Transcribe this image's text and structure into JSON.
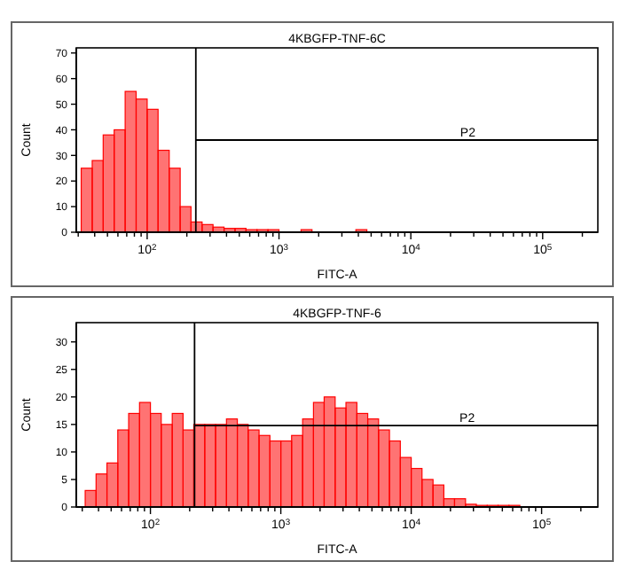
{
  "chart_data": [
    {
      "type": "histogram",
      "title": "4KBGFP-TNF-6C",
      "xlabel": "FITC-A",
      "ylabel": "Count",
      "log": "x",
      "color": "#ff0000",
      "bins": [
        31.6,
        38.3,
        46.4,
        56.2,
        68.1,
        82.5,
        100,
        121,
        147,
        178,
        215,
        261,
        316,
        383,
        464,
        562,
        681,
        825,
        1000,
        1210,
        1470,
        1780,
        2150,
        2610,
        3160,
        3830,
        4640,
        5620,
        6810,
        8250,
        10000,
        12100,
        14700,
        17800,
        21500,
        26100,
        31600,
        38300,
        46400,
        56200,
        68100,
        82500,
        100000,
        121000,
        147000,
        178000,
        215000,
        261000
      ],
      "values": [
        25,
        28,
        38,
        40,
        55,
        52,
        48,
        32,
        25,
        10,
        4,
        3,
        2,
        1.5,
        1.5,
        1,
        1,
        1,
        0,
        0,
        1,
        0,
        0,
        0,
        0,
        1,
        0,
        0,
        0,
        0,
        0,
        0,
        0,
        0,
        0,
        0,
        0,
        0,
        0,
        0,
        0,
        0,
        0,
        0,
        0,
        0,
        0
      ],
      "xlim": [
        29,
        262144
      ],
      "xticks": [
        {
          "value": 30,
          "label": null
        },
        {
          "value": 40,
          "label": null
        },
        {
          "value": 50,
          "label": null
        },
        {
          "value": 60,
          "label": null
        },
        {
          "value": 70,
          "label": null
        },
        {
          "value": 80,
          "label": null
        },
        {
          "value": 90,
          "label": null
        },
        {
          "value": 100,
          "label": "10$^{2}$"
        },
        {
          "value": 200,
          "label": null
        },
        {
          "value": 300,
          "label": null
        },
        {
          "value": 400,
          "label": null
        },
        {
          "value": 500,
          "label": null
        },
        {
          "value": 600,
          "label": null
        },
        {
          "value": 700,
          "label": null
        },
        {
          "value": 800,
          "label": null
        },
        {
          "value": 900,
          "label": null
        },
        {
          "value": 1000,
          "label": "10$^{3}$"
        },
        {
          "value": 2000,
          "label": null
        },
        {
          "value": 3000,
          "label": null
        },
        {
          "value": 4000,
          "label": null
        },
        {
          "value": 5000,
          "label": null
        },
        {
          "value": 6000,
          "label": null
        },
        {
          "value": 7000,
          "label": null
        },
        {
          "value": 8000,
          "label": null
        },
        {
          "value": 9000,
          "label": null
        },
        {
          "value": 10000,
          "label": "10$^{4}$"
        },
        {
          "value": 20000,
          "label": null
        },
        {
          "value": 30000,
          "label": null
        },
        {
          "value": 40000,
          "label": null
        },
        {
          "value": 50000,
          "label": null
        },
        {
          "value": 60000,
          "label": null
        },
        {
          "value": 70000,
          "label": null
        },
        {
          "value": 80000,
          "label": null
        },
        {
          "value": 90000,
          "label": null
        },
        {
          "value": 100000,
          "label": "10$^{5}$"
        },
        {
          "value": 200000,
          "label": null
        }
      ],
      "ylim": [
        0,
        72
      ],
      "yticks": [
        0,
        10,
        20,
        30,
        40,
        50,
        60,
        70
      ],
      "ref_lines": [
        {
          "axis": "x",
          "value": 234,
          "color": "#000000"
        },
        {
          "axis": "y",
          "value": 36,
          "label": "P2",
          "color": "#000000"
        }
      ]
    },
    {
      "type": "histogram",
      "title": "4KBGFP-TNF-6",
      "xlabel": "FITC-A",
      "ylabel": "Count",
      "log": "x",
      "color": "#ff0000",
      "bins": [
        31.6,
        38.3,
        46.4,
        56.2,
        68.1,
        82.5,
        100,
        121,
        147,
        178,
        215,
        261,
        316,
        383,
        464,
        562,
        681,
        825,
        1000,
        1210,
        1470,
        1780,
        2150,
        2610,
        3160,
        3830,
        4640,
        5620,
        6810,
        8250,
        10000,
        12100,
        14700,
        17800,
        21500,
        26100,
        31600,
        38300,
        46400,
        56200,
        68100,
        82500,
        100000,
        121000,
        147000,
        178000,
        215000,
        261000
      ],
      "values": [
        3,
        6,
        8,
        14,
        17,
        19,
        17,
        15,
        17,
        14,
        15,
        15,
        15,
        16,
        15,
        14,
        13,
        12,
        12,
        13,
        16,
        19,
        20,
        18,
        19,
        17,
        16,
        14,
        12,
        9,
        7,
        5,
        4,
        1.5,
        1.5,
        0.5,
        0.3,
        0.3,
        0.3,
        0.3,
        0,
        0,
        0,
        0,
        0,
        0,
        0
      ],
      "xlim": [
        27,
        270000
      ],
      "xticks": [
        {
          "value": 30,
          "label": null
        },
        {
          "value": 40,
          "label": null
        },
        {
          "value": 50,
          "label": null
        },
        {
          "value": 60,
          "label": null
        },
        {
          "value": 70,
          "label": null
        },
        {
          "value": 80,
          "label": null
        },
        {
          "value": 90,
          "label": null
        },
        {
          "value": 100,
          "label": "10$^{2}$"
        },
        {
          "value": 200,
          "label": null
        },
        {
          "value": 300,
          "label": null
        },
        {
          "value": 400,
          "label": null
        },
        {
          "value": 500,
          "label": null
        },
        {
          "value": 600,
          "label": null
        },
        {
          "value": 700,
          "label": null
        },
        {
          "value": 800,
          "label": null
        },
        {
          "value": 900,
          "label": null
        },
        {
          "value": 1000,
          "label": "10$^{3}$"
        },
        {
          "value": 2000,
          "label": null
        },
        {
          "value": 3000,
          "label": null
        },
        {
          "value": 4000,
          "label": null
        },
        {
          "value": 5000,
          "label": null
        },
        {
          "value": 6000,
          "label": null
        },
        {
          "value": 7000,
          "label": null
        },
        {
          "value": 8000,
          "label": null
        },
        {
          "value": 9000,
          "label": null
        },
        {
          "value": 10000,
          "label": "10$^{4}$"
        },
        {
          "value": 20000,
          "label": null
        },
        {
          "value": 30000,
          "label": null
        },
        {
          "value": 40000,
          "label": null
        },
        {
          "value": 50000,
          "label": null
        },
        {
          "value": 60000,
          "label": null
        },
        {
          "value": 70000,
          "label": null
        },
        {
          "value": 80000,
          "label": null
        },
        {
          "value": 90000,
          "label": null
        },
        {
          "value": 100000,
          "label": "10$^{5}$"
        },
        {
          "value": 200000,
          "label": null
        }
      ],
      "ylim": [
        0,
        33.5
      ],
      "yticks": [
        0,
        5,
        10,
        15,
        20,
        25,
        30
      ],
      "ref_lines": [
        {
          "axis": "x",
          "value": 218,
          "color": "#000000"
        },
        {
          "axis": "y",
          "value": 14.8,
          "label": "P2",
          "color": "#000000"
        }
      ]
    }
  ]
}
